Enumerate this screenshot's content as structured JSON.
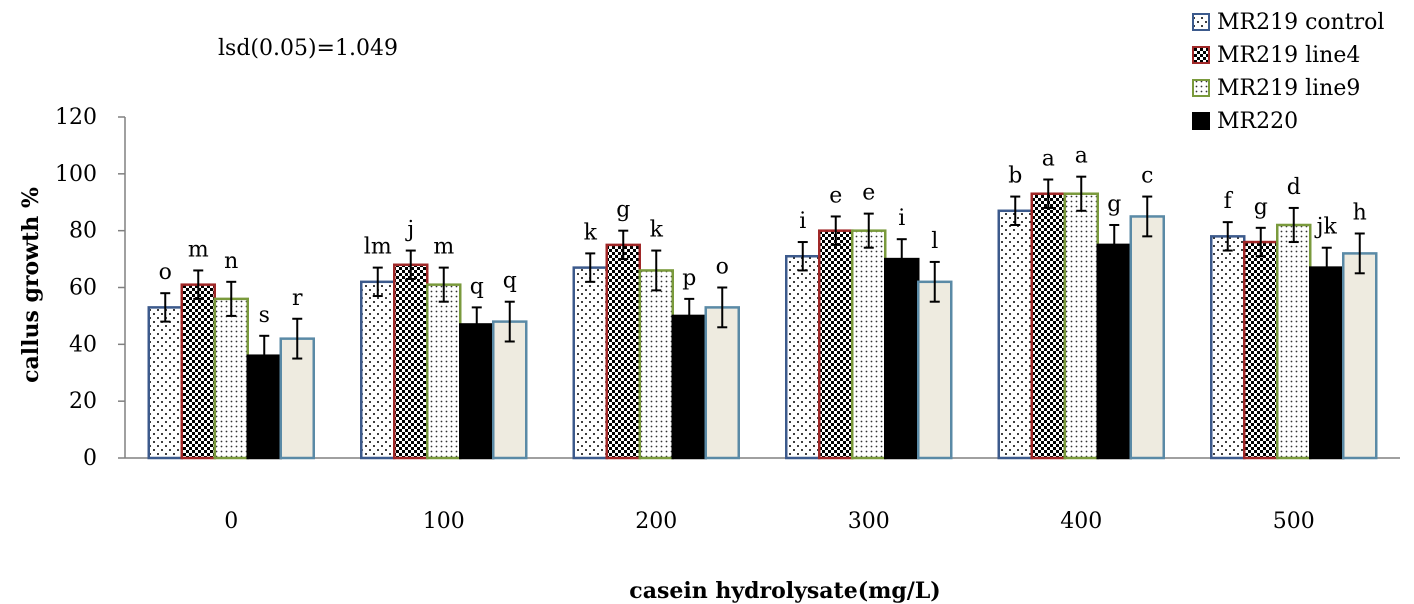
{
  "chart_data": {
    "type": "bar",
    "xlabel": "casein hydrolysate(mg/L)",
    "ylabel": "callus growth %",
    "annotation": "lsd(0.05)=1.049",
    "categories": [
      "0",
      "100",
      "200",
      "300",
      "400",
      "500"
    ],
    "ylim": [
      0,
      120
    ],
    "yticks": [
      "0",
      "20",
      "40",
      "60",
      "80",
      "100",
      "120"
    ],
    "grid": false,
    "legend_position": "top-right",
    "series": [
      {
        "name": "MR219 control",
        "values": [
          53,
          62,
          67,
          71,
          87,
          78
        ],
        "errors": [
          5,
          5,
          5,
          5,
          5,
          5
        ],
        "labels": [
          "o",
          "lm",
          "k",
          "i",
          "b",
          "f"
        ],
        "fill": "#ffffff",
        "stroke": "#3c5a8c",
        "pattern": "dots"
      },
      {
        "name": "MR219 line4",
        "values": [
          61,
          68,
          75,
          80,
          93,
          76
        ],
        "errors": [
          5,
          5,
          5,
          5,
          5,
          5
        ],
        "labels": [
          "m",
          "j",
          "g",
          "e",
          "a",
          "g"
        ],
        "fill": "#ffffff",
        "stroke": "#a02828",
        "pattern": "checker"
      },
      {
        "name": "MR219 line9",
        "values": [
          56,
          61,
          66,
          80,
          93,
          82
        ],
        "errors": [
          6,
          6,
          7,
          6,
          6,
          6
        ],
        "labels": [
          "n",
          "m",
          "k",
          "e",
          "a",
          "d"
        ],
        "fill": "#ffffff",
        "stroke": "#7a9a3c",
        "pattern": "finedots"
      },
      {
        "name": "MR220",
        "values": [
          36,
          47,
          50,
          70,
          75,
          67
        ],
        "errors": [
          7,
          6,
          6,
          7,
          7,
          7
        ],
        "labels": [
          "s",
          "q",
          "p",
          "i",
          "g",
          "jk"
        ],
        "fill": "#000000",
        "stroke": "#000000",
        "pattern": "solid"
      },
      {
        "name": "",
        "values": [
          42,
          48,
          53,
          62,
          85,
          72
        ],
        "errors": [
          7,
          7,
          7,
          7,
          7,
          7
        ],
        "labels": [
          "r",
          "q",
          "o",
          "l",
          "c",
          "h"
        ],
        "fill": "#eeebe0",
        "stroke": "#5a8aa6",
        "pattern": "solid"
      }
    ],
    "legend": [
      "MR219 control",
      "MR219 line4",
      "MR219 line9",
      "MR220"
    ]
  }
}
